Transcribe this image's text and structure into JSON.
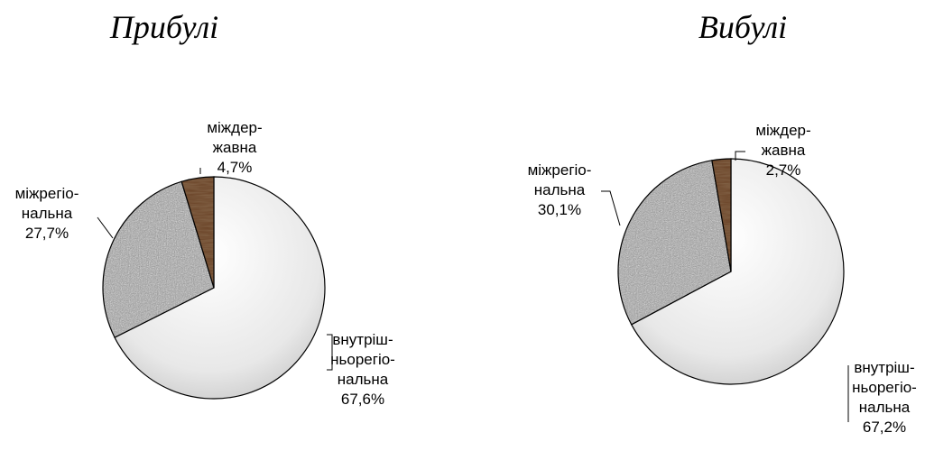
{
  "chart_data": [
    {
      "type": "pie",
      "title": "Прибулі",
      "slices": [
        {
          "label": [
            "внутріш-",
            "ньорегіо-",
            "нальна"
          ],
          "value": 67.6,
          "value_label": "67,6%",
          "color": "#e6e6e6"
        },
        {
          "label": [
            "міжрегіо-",
            "нальна"
          ],
          "value": 27.7,
          "value_label": "27,7%",
          "color": "#9a9a9a"
        },
        {
          "label": [
            "міждер-",
            "жавна"
          ],
          "value": 4.7,
          "value_label": "4,7%",
          "color": "#5a3a24"
        }
      ]
    },
    {
      "type": "pie",
      "title": "Вибулі",
      "slices": [
        {
          "label": [
            "внутріш-",
            "ньорегіо-",
            "нальна"
          ],
          "value": 67.2,
          "value_label": "67,2%",
          "color": "#e6e6e6"
        },
        {
          "label": [
            "міжрегіо-",
            "нальна"
          ],
          "value": 30.1,
          "value_label": "30,1%",
          "color": "#9a9a9a"
        },
        {
          "label": [
            "міждер-",
            "жавна"
          ],
          "value": 2.7,
          "value_label": "2,7%",
          "color": "#5a3a24"
        }
      ]
    }
  ]
}
